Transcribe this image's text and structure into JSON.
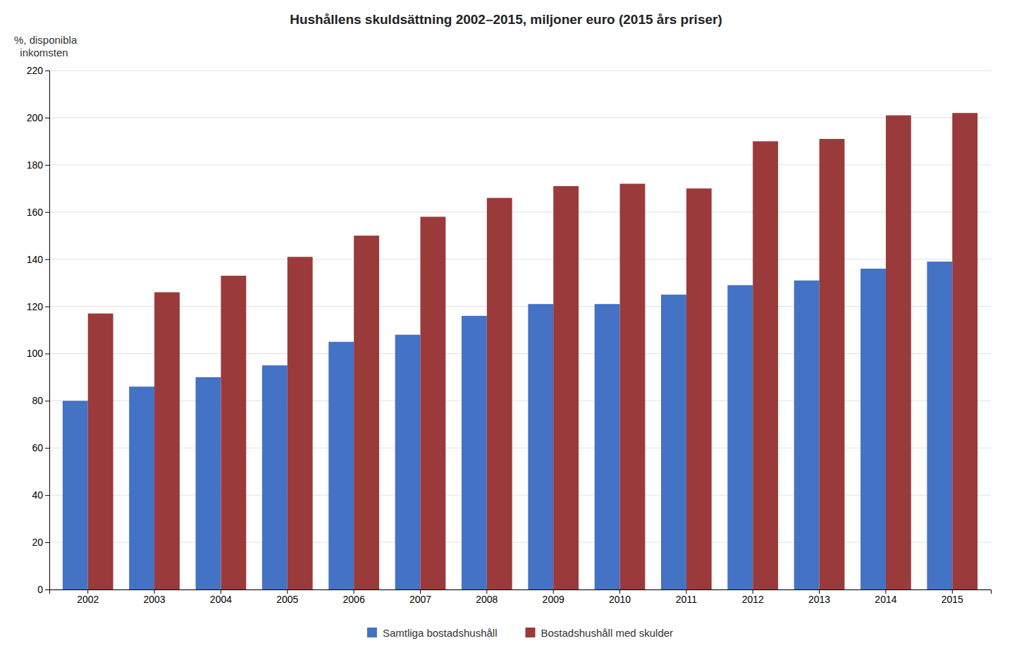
{
  "chart_data": {
    "type": "bar",
    "title": "Hushållens skuldsättning 2002–2015, miljoner euro (2015 års priser)",
    "ylabel": "%, disponibla\n  inkomsten",
    "categories": [
      "2002",
      "2003",
      "2004",
      "2005",
      "2006",
      "2007",
      "2008",
      "2009",
      "2010",
      "2011",
      "2012",
      "2013",
      "2014",
      "2015"
    ],
    "series": [
      {
        "name": "Samtliga bostadshushåll",
        "color": "#4472C4",
        "values": [
          80,
          86,
          90,
          95,
          105,
          108,
          116,
          121,
          121,
          125,
          129,
          131,
          136,
          139
        ]
      },
      {
        "name": "Bostadshushåll med skulder",
        "color": "#9B3A3A",
        "values": [
          117,
          126,
          133,
          141,
          150,
          158,
          166,
          171,
          172,
          170,
          190,
          191,
          201,
          202
        ]
      }
    ],
    "ylim": [
      0,
      220
    ],
    "yticks": [
      0,
      20,
      40,
      60,
      80,
      100,
      120,
      140,
      160,
      180,
      200,
      220
    ],
    "grid": true,
    "legend": "bottom"
  }
}
